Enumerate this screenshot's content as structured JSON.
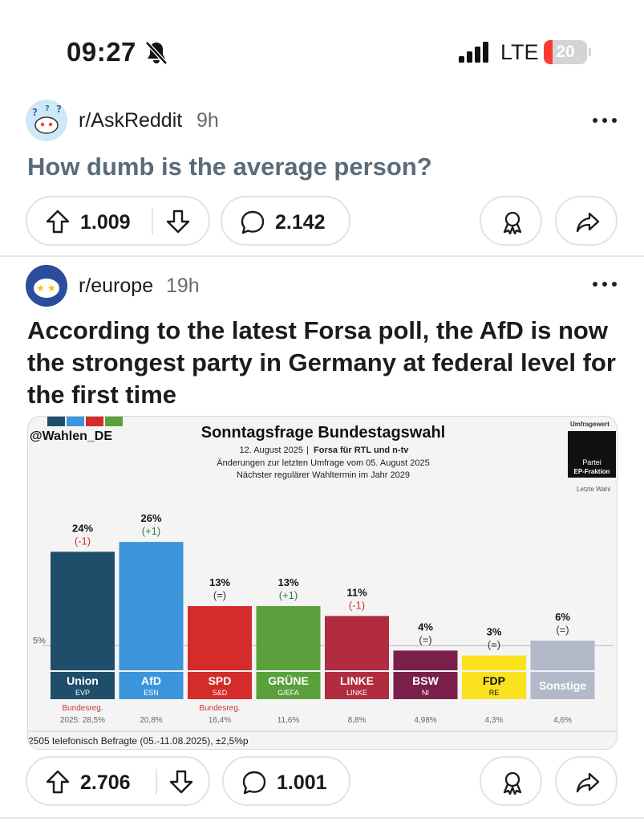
{
  "status_bar": {
    "time": "09:27",
    "network": "LTE",
    "battery": "20",
    "battery_level_percent": 20
  },
  "posts": [
    {
      "subreddit": "r/AskReddit",
      "age": "9h",
      "title": "How dumb is the average person?",
      "upvotes": "1.009",
      "comments": "2.142"
    },
    {
      "subreddit": "r/europe",
      "age": "19h",
      "title": "According to the latest Forsa poll, the AfD is now the strongest party in Germany at federal level for the first time",
      "upvotes": "2.706",
      "comments": "1.001"
    }
  ],
  "icons": {
    "muted": "bell-slash-icon",
    "signal": "cellular-signal-icon",
    "battery": "battery-icon",
    "more": "more-options-icon",
    "upvote": "upvote-arrow-icon",
    "downvote": "downvote-arrow-icon",
    "comment": "comment-bubble-icon",
    "award": "award-icon",
    "share": "share-icon"
  },
  "chart_data": {
    "type": "bar",
    "source_tag": "@Wahlen_DE",
    "title": "Sonntagsfrage Bundestagswahl",
    "date": "12. August 2025",
    "institute": "Forsa für RTL und n-tv",
    "changes_line": "Änderungen zur letzten Umfrage vom 05. August 2025",
    "next_election_line": "Nächster regulärer Wahltermin im Jahr 2029",
    "legend_top": "Umfragewert",
    "legend_party": "Partei",
    "legend_fraction": "EP-Fraktion",
    "legend_last": "Letzte Wahl",
    "threshold_label": "5%",
    "threshold_value": 5,
    "ylim": [
      0,
      30
    ],
    "categories": [
      "Union",
      "AfD",
      "SPD",
      "GRÜNE",
      "LINKE",
      "BSW",
      "FDP",
      "Sonstige"
    ],
    "fractions": [
      "EVP",
      "ESN",
      "S&D",
      "G/EFA",
      "LINKE",
      "NI",
      "RE",
      ""
    ],
    "values": [
      24,
      26,
      13,
      13,
      11,
      4,
      3,
      6
    ],
    "value_labels": [
      "24%",
      "26%",
      "13%",
      "13%",
      "11%",
      "4%",
      "3%",
      "6%"
    ],
    "changes": [
      "(-1)",
      "(+1)",
      "(=)",
      "(+1)",
      "(-1)",
      "(=)",
      "(=)",
      "(=)"
    ],
    "change_colors": [
      "#c0392b",
      "#2e7d32",
      "#333333",
      "#2e7d32",
      "#c0392b",
      "#333333",
      "#333333",
      "#333333"
    ],
    "colors": [
      "#1f4e6b",
      "#3c95db",
      "#d42b2b",
      "#5aa03c",
      "#b12c3f",
      "#7a1f4a",
      "#fbe21f",
      "#b2b9c8"
    ],
    "label_text_colors": [
      "#ffffff",
      "#ffffff",
      "#ffffff",
      "#ffffff",
      "#ffffff",
      "#ffffff",
      "#111111",
      "#ffffff"
    ],
    "government_labels": [
      "Bundesreg.",
      "",
      "Bundesreg.",
      "",
      "",
      "",
      "",
      ""
    ],
    "last_election": [
      "2025: 28,5%",
      "20,8%",
      "16,4%",
      "11,6%",
      "8,8%",
      "4,98%",
      "4,3%",
      "4,6%"
    ],
    "footnote": "2505 telefonisch Befragte (05.-11.08.2025), ±2,5%p"
  }
}
